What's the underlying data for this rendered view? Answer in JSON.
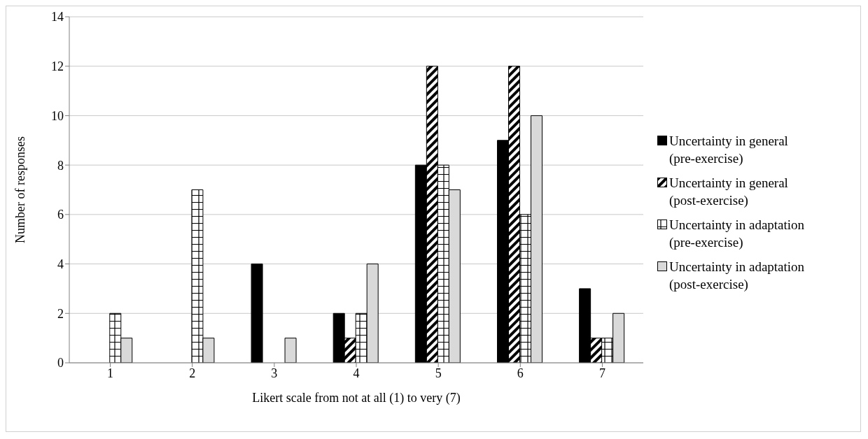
{
  "chart_data": {
    "type": "bar",
    "xlabel": "Likert scale from not at all (1) to very (7)",
    "ylabel": "Number of responses",
    "categories": [
      "1",
      "2",
      "3",
      "4",
      "5",
      "6",
      "7"
    ],
    "series": [
      {
        "name": "Uncertainty in general (pre-exercise)",
        "color": "#000000",
        "values": [
          0,
          0,
          4,
          2,
          8,
          9,
          3
        ]
      },
      {
        "name": "Uncertainty in general (post-exercise)",
        "color": "#000000",
        "values": [
          0,
          0,
          0,
          1,
          12,
          12,
          1
        ]
      },
      {
        "name": "Uncertainty in adaptation (pre-exercise)",
        "color": "#000000",
        "values": [
          2,
          7,
          0,
          2,
          8,
          6,
          1
        ]
      },
      {
        "name": "Uncertainty in adaptation (post-exercise)",
        "color": "#d9d9d9",
        "values": [
          1,
          1,
          1,
          4,
          7,
          10,
          2
        ]
      }
    ],
    "ylim": [
      0,
      14
    ],
    "yticks": [
      0,
      2,
      4,
      6,
      8,
      10,
      12,
      14
    ],
    "grid": "y",
    "legend": "right"
  }
}
